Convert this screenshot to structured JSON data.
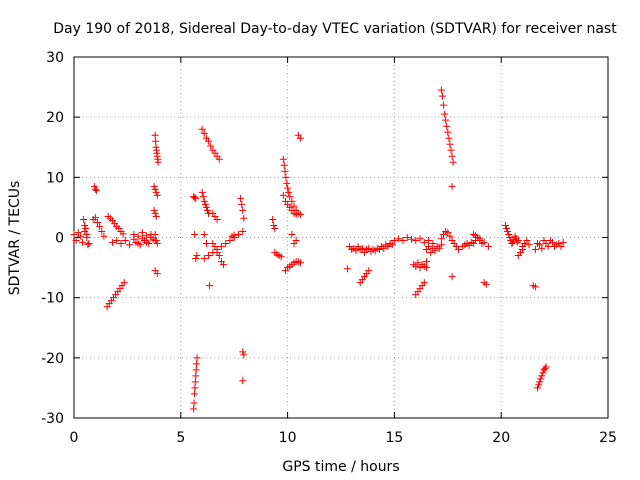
{
  "chart_data": {
    "type": "scatter",
    "title": "Day 190 of 2018, Sidereal Day-to-day VTEC variation (SDTVAR) for receiver nast",
    "xlabel": "GPS time / hours",
    "ylabel": "SDTVAR / TECUs",
    "xlim": [
      0,
      25
    ],
    "ylim": [
      -30,
      30
    ],
    "xticks": [
      0,
      5,
      10,
      15,
      20,
      25
    ],
    "yticks": [
      -30,
      -20,
      -10,
      0,
      10,
      20,
      30
    ],
    "xtick_labels": [
      "0",
      "5",
      "10",
      "15",
      "20",
      "25"
    ],
    "ytick_labels": [
      "-30",
      "-20",
      "-10",
      "0",
      "10",
      "20",
      "30"
    ],
    "grid": true,
    "legend": "none",
    "marker": "plus",
    "color": "#ff0000",
    "series": [
      {
        "name": "arc-1",
        "x": [
          0.0,
          0.1,
          0.2,
          0.3,
          0.4,
          0.5,
          0.6,
          0.7
        ],
        "y": [
          0.5,
          -0.5,
          0.8,
          0.2,
          -0.8,
          1.0,
          0.0,
          -1.0
        ]
      },
      {
        "name": "arc-2",
        "x": [
          0.45,
          0.5,
          0.55,
          0.6,
          0.65
        ],
        "y": [
          3.0,
          2.0,
          1.5,
          0.5,
          -1.2
        ]
      },
      {
        "name": "arc-3",
        "x": [
          0.95,
          1.0,
          1.05
        ],
        "y": [
          8.5,
          8.0,
          7.8
        ]
      },
      {
        "name": "arc-4",
        "x": [
          0.9,
          1.0,
          1.1,
          1.2,
          1.3,
          1.4
        ],
        "y": [
          3.0,
          3.3,
          2.5,
          1.8,
          1.0,
          0.2
        ]
      },
      {
        "name": "arc-5",
        "x": [
          1.6,
          1.7,
          1.8,
          1.9,
          2.0,
          2.1,
          2.2,
          2.3
        ],
        "y": [
          3.5,
          3.2,
          2.8,
          2.3,
          1.8,
          1.5,
          1.0,
          0.6
        ]
      },
      {
        "name": "arc-6",
        "x": [
          1.55,
          1.65,
          1.75,
          1.85,
          1.95,
          2.05,
          2.15,
          2.25,
          2.35
        ],
        "y": [
          -11.5,
          -11.0,
          -10.5,
          -10.0,
          -9.5,
          -9.0,
          -8.5,
          -8.0,
          -7.5
        ]
      },
      {
        "name": "arc-7",
        "x": [
          1.8,
          2.0,
          2.2,
          2.4,
          2.6,
          2.8,
          3.0,
          3.2,
          3.4,
          3.6,
          3.8
        ],
        "y": [
          -0.8,
          -0.5,
          -1.0,
          -0.5,
          -1.2,
          -0.3,
          -1.0,
          -0.2,
          -0.8,
          0.0,
          -0.5
        ]
      },
      {
        "name": "arc-8",
        "x": [
          2.8,
          2.9,
          3.0,
          3.1,
          3.2,
          3.3,
          3.4,
          3.5,
          3.6,
          3.7
        ],
        "y": [
          0.5,
          -0.8,
          0.2,
          -1.2,
          0.8,
          -0.5,
          0.3,
          -1.0,
          0.5,
          -0.3
        ]
      },
      {
        "name": "arc-9",
        "x": [
          3.8,
          3.82,
          3.84,
          3.86,
          3.88,
          3.9,
          3.92,
          3.94
        ],
        "y": [
          17.0,
          16.0,
          15.0,
          14.5,
          14.0,
          13.5,
          13.0,
          12.5
        ]
      },
      {
        "name": "arc-10",
        "x": [
          3.75,
          3.8,
          3.85,
          3.9
        ],
        "y": [
          8.5,
          8.0,
          7.5,
          7.0
        ]
      },
      {
        "name": "arc-11",
        "x": [
          3.75,
          3.8,
          3.85
        ],
        "y": [
          4.5,
          4.0,
          3.5
        ]
      },
      {
        "name": "arc-12",
        "x": [
          3.8,
          3.85,
          3.9
        ],
        "y": [
          0.5,
          -0.5,
          -1.0
        ]
      },
      {
        "name": "arc-13",
        "x": [
          3.8,
          3.9
        ],
        "y": [
          -5.5,
          -6.0
        ]
      },
      {
        "name": "arc-14",
        "x": [
          5.6,
          5.65,
          5.7
        ],
        "y": [
          6.8,
          6.6,
          6.5
        ]
      },
      {
        "name": "arc-15",
        "x": [
          5.65,
          5.7,
          5.75
        ],
        "y": [
          0.5,
          -3.5,
          -3.0
        ]
      },
      {
        "name": "arc-16",
        "x": [
          5.6,
          5.62,
          5.64,
          5.66,
          5.68,
          5.7,
          5.72,
          5.74,
          5.76
        ],
        "y": [
          -28.5,
          -27.5,
          -26.0,
          -25.0,
          -24.0,
          -23.0,
          -22.0,
          -21.0,
          -20.0
        ]
      },
      {
        "name": "arc-17",
        "x": [
          6.0,
          6.1,
          6.2,
          6.3,
          6.4,
          6.5,
          6.6,
          6.7,
          6.8
        ],
        "y": [
          18.0,
          17.3,
          16.5,
          16.0,
          15.2,
          14.5,
          14.0,
          13.5,
          13.0
        ]
      },
      {
        "name": "arc-18",
        "x": [
          6.0,
          6.05,
          6.1,
          6.15,
          6.2,
          6.25,
          6.3
        ],
        "y": [
          7.5,
          6.8,
          6.0,
          5.5,
          5.0,
          4.5,
          4.0
        ]
      },
      {
        "name": "arc-19",
        "x": [
          6.1,
          6.2
        ],
        "y": [
          0.5,
          -1.0
        ]
      },
      {
        "name": "arc-20",
        "x": [
          6.1,
          6.3,
          6.5,
          6.7,
          6.9,
          7.1,
          7.3,
          7.5,
          7.7,
          7.9
        ],
        "y": [
          -3.5,
          -3.0,
          -2.5,
          -2.0,
          -1.5,
          -1.0,
          -0.5,
          0.0,
          0.5,
          1.0
        ]
      },
      {
        "name": "arc-21",
        "x": [
          6.5,
          6.6,
          6.7
        ],
        "y": [
          4.0,
          3.5,
          3.0
        ]
      },
      {
        "name": "arc-22",
        "x": [
          6.35
        ],
        "y": [
          -8.0
        ]
      },
      {
        "name": "arc-23",
        "x": [
          6.5,
          6.6,
          6.7,
          6.8,
          6.9,
          7.0
        ],
        "y": [
          -1.0,
          -1.5,
          -2.5,
          -3.0,
          -4.0,
          -4.5
        ]
      },
      {
        "name": "arc-24",
        "x": [
          7.4,
          7.5
        ],
        "y": [
          0.2,
          0.4
        ]
      },
      {
        "name": "arc-25",
        "x": [
          7.8,
          7.85,
          7.9,
          7.95
        ],
        "y": [
          6.5,
          5.5,
          4.5,
          3.2
        ]
      },
      {
        "name": "arc-26",
        "x": [
          7.9,
          7.95
        ],
        "y": [
          -19.0,
          -19.5
        ]
      },
      {
        "name": "arc-27",
        "x": [
          7.9
        ],
        "y": [
          -23.8
        ]
      },
      {
        "name": "arc-28",
        "x": [
          9.3,
          9.35,
          9.4
        ],
        "y": [
          3.0,
          2.0,
          1.5
        ]
      },
      {
        "name": "arc-29",
        "x": [
          9.4,
          9.5,
          9.6,
          9.7
        ],
        "y": [
          -2.5,
          -2.8,
          -3.0,
          -3.2
        ]
      },
      {
        "name": "arc-30",
        "x": [
          9.8,
          9.84,
          9.88,
          9.92,
          9.96,
          10.0,
          10.05,
          10.1,
          10.2,
          10.3,
          10.4,
          10.5,
          10.6
        ],
        "y": [
          13.0,
          12.0,
          11.0,
          10.0,
          9.0,
          8.2,
          7.5,
          6.8,
          6.0,
          5.2,
          4.5,
          4.0,
          3.8
        ]
      },
      {
        "name": "arc-31",
        "x": [
          9.8,
          9.9,
          10.0,
          10.1,
          10.2,
          10.3,
          10.4
        ],
        "y": [
          7.0,
          6.0,
          5.5,
          5.0,
          4.5,
          4.0,
          3.8
        ]
      },
      {
        "name": "arc-32",
        "x": [
          10.5,
          10.6
        ],
        "y": [
          17.0,
          16.5
        ]
      },
      {
        "name": "arc-33",
        "x": [
          9.9,
          10.0,
          10.1,
          10.2,
          10.3,
          10.4,
          10.5,
          10.6
        ],
        "y": [
          -5.5,
          -5.0,
          -4.8,
          -4.5,
          -4.2,
          -4.0,
          -4.0,
          -4.2
        ]
      },
      {
        "name": "arc-34",
        "x": [
          10.2,
          10.3,
          10.4
        ],
        "y": [
          0.5,
          -1.0,
          -0.5
        ]
      },
      {
        "name": "arc-35",
        "x": [
          12.8
        ],
        "y": [
          -5.2
        ]
      },
      {
        "name": "arc-36",
        "x": [
          12.9,
          13.0,
          13.1,
          13.2,
          13.3,
          13.4,
          13.5,
          13.6,
          13.7,
          13.8,
          13.9,
          14.0,
          14.1,
          14.2,
          14.3,
          14.4,
          14.5,
          14.6,
          14.7,
          14.8,
          14.9
        ],
        "y": [
          -1.5,
          -2.0,
          -1.8,
          -2.2,
          -1.5,
          -2.0,
          -1.8,
          -2.5,
          -2.0,
          -1.8,
          -2.3,
          -2.0,
          -2.2,
          -1.8,
          -2.0,
          -1.5,
          -1.8,
          -1.2,
          -1.5,
          -1.0,
          -1.2
        ]
      },
      {
        "name": "arc-37",
        "x": [
          13.4,
          13.5,
          13.6,
          13.7,
          13.8
        ],
        "y": [
          -7.5,
          -7.0,
          -6.5,
          -6.0,
          -5.5
        ]
      },
      {
        "name": "arc-38",
        "x": [
          14.8,
          15.0,
          15.2,
          15.4,
          15.6,
          15.8,
          16.0,
          16.2,
          16.4,
          16.6,
          16.8
        ],
        "y": [
          -1.0,
          -0.5,
          -0.2,
          -0.5,
          0.0,
          -0.3,
          -0.5,
          -0.2,
          -0.8,
          -0.5,
          -1.0
        ]
      },
      {
        "name": "arc-39",
        "x": [
          16.0,
          16.1,
          16.2,
          16.3,
          16.4
        ],
        "y": [
          -9.5,
          -9.0,
          -8.5,
          -8.0,
          -7.5
        ]
      },
      {
        "name": "arc-40",
        "x": [
          15.9,
          16.0,
          16.1,
          16.2,
          16.3,
          16.4,
          16.5
        ],
        "y": [
          -4.5,
          -4.8,
          -4.2,
          -5.0,
          -4.5,
          -4.8,
          -4.0
        ]
      },
      {
        "name": "arc-41",
        "x": [
          16.5,
          16.6,
          16.7,
          16.8,
          16.9,
          17.0,
          17.1,
          17.2
        ],
        "y": [
          -2.0,
          -1.5,
          -2.5,
          -1.8,
          -2.2,
          -1.5,
          -1.8,
          -1.2
        ]
      },
      {
        "name": "arc-42",
        "x": [
          16.5
        ],
        "y": [
          -5.0
        ]
      },
      {
        "name": "arc-43",
        "x": [
          17.2,
          17.3,
          17.4,
          17.5,
          17.6,
          17.7,
          17.8,
          17.9,
          18.0
        ],
        "y": [
          -0.2,
          0.5,
          1.0,
          0.8,
          0.2,
          -0.5,
          -1.0,
          -1.5,
          -2.0
        ]
      },
      {
        "name": "arc-44",
        "x": [
          17.2,
          17.25,
          17.3,
          17.35,
          17.4,
          17.45,
          17.5,
          17.55,
          17.6,
          17.65,
          17.7,
          17.75
        ],
        "y": [
          24.5,
          23.5,
          22.0,
          20.5,
          19.5,
          18.5,
          17.5,
          16.5,
          15.5,
          14.5,
          13.5,
          12.5
        ]
      },
      {
        "name": "arc-45",
        "x": [
          17.7
        ],
        "y": [
          8.5
        ]
      },
      {
        "name": "arc-46",
        "x": [
          17.7
        ],
        "y": [
          -6.5
        ]
      },
      {
        "name": "arc-47",
        "x": [
          18.2,
          18.3,
          18.4,
          18.5,
          18.6,
          18.7,
          18.8,
          19.0,
          19.2,
          19.4
        ],
        "y": [
          -1.5,
          -1.2,
          -1.0,
          -1.3,
          -0.8,
          -1.0,
          -0.5,
          -0.2,
          -0.8,
          -1.5
        ]
      },
      {
        "name": "arc-48",
        "x": [
          18.7,
          18.8,
          18.9,
          19.0,
          19.1
        ],
        "y": [
          0.5,
          0.3,
          0.0,
          -0.5,
          -1.0
        ]
      },
      {
        "name": "arc-49",
        "x": [
          19.2,
          19.3
        ],
        "y": [
          -7.5,
          -7.8
        ]
      },
      {
        "name": "arc-50",
        "x": [
          20.2,
          20.25,
          20.3,
          20.35,
          20.4,
          20.45,
          20.5,
          20.55,
          20.6,
          20.65,
          20.7,
          20.75,
          20.8
        ],
        "y": [
          2.0,
          1.5,
          1.0,
          0.5,
          0.0,
          -0.5,
          -1.0,
          -0.8,
          -0.3,
          0.2,
          -0.2,
          -0.8,
          -0.5
        ]
      },
      {
        "name": "arc-51",
        "x": [
          20.8,
          20.9,
          21.0
        ],
        "y": [
          -3.0,
          -2.5,
          -2.0
        ]
      },
      {
        "name": "arc-52",
        "x": [
          21.0,
          21.1,
          21.2,
          21.3
        ],
        "y": [
          -1.5,
          -1.0,
          -0.5,
          -1.2
        ]
      },
      {
        "name": "arc-53",
        "x": [
          21.5,
          21.6
        ],
        "y": [
          -8.0,
          -8.2
        ]
      },
      {
        "name": "arc-54",
        "x": [
          21.7,
          21.75,
          21.8,
          21.85,
          21.9,
          21.95,
          22.0,
          22.05,
          22.1
        ],
        "y": [
          -25.0,
          -24.5,
          -24.0,
          -23.5,
          -23.0,
          -22.5,
          -22.0,
          -21.8,
          -21.5
        ]
      },
      {
        "name": "arc-55",
        "x": [
          21.6,
          21.8,
          22.0,
          22.2,
          22.4,
          22.6,
          22.8
        ],
        "y": [
          -2.0,
          -1.2,
          -0.5,
          -1.5,
          -0.8,
          -1.2,
          -1.5
        ]
      },
      {
        "name": "arc-56",
        "x": [
          21.7,
          21.9,
          22.1,
          22.3,
          22.5,
          22.7,
          22.9
        ],
        "y": [
          -1.0,
          -1.8,
          -1.0,
          -0.5,
          -1.5,
          -1.0,
          -0.8
        ]
      }
    ]
  }
}
